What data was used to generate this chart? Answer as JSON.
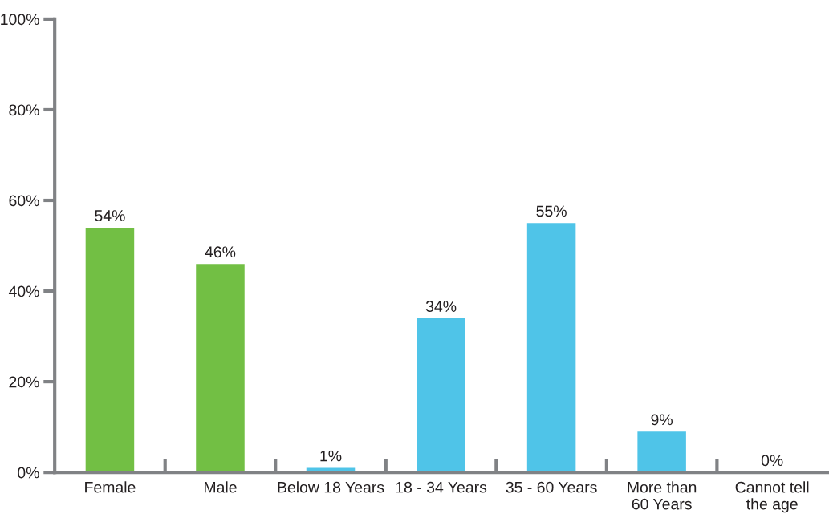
{
  "chart_data": {
    "type": "bar",
    "categories": [
      "Female",
      "Male",
      "Below 18 Years",
      "18 - 34 Years",
      "35 - 60 Years",
      "More than\n60 Years",
      "Cannot tell\nthe age"
    ],
    "values": [
      54,
      46,
      1,
      34,
      55,
      9,
      0
    ],
    "colors": [
      "#72bf44",
      "#72bf44",
      "#4fc4e8",
      "#4fc4e8",
      "#4fc4e8",
      "#4fc4e8",
      "#4fc4e8"
    ],
    "value_labels": [
      "54%",
      "46%",
      "1%",
      "34%",
      "55%",
      "9%",
      "0%"
    ],
    "ylim": [
      0,
      100
    ],
    "yticks": [
      {
        "value": 0,
        "label": "0%"
      },
      {
        "value": 20,
        "label": "20%"
      },
      {
        "value": 40,
        "label": "40%"
      },
      {
        "value": 60,
        "label": "60%"
      },
      {
        "value": 80,
        "label": "80%"
      },
      {
        "value": 100,
        "label": "100%"
      }
    ],
    "grid": false,
    "legend": false
  }
}
